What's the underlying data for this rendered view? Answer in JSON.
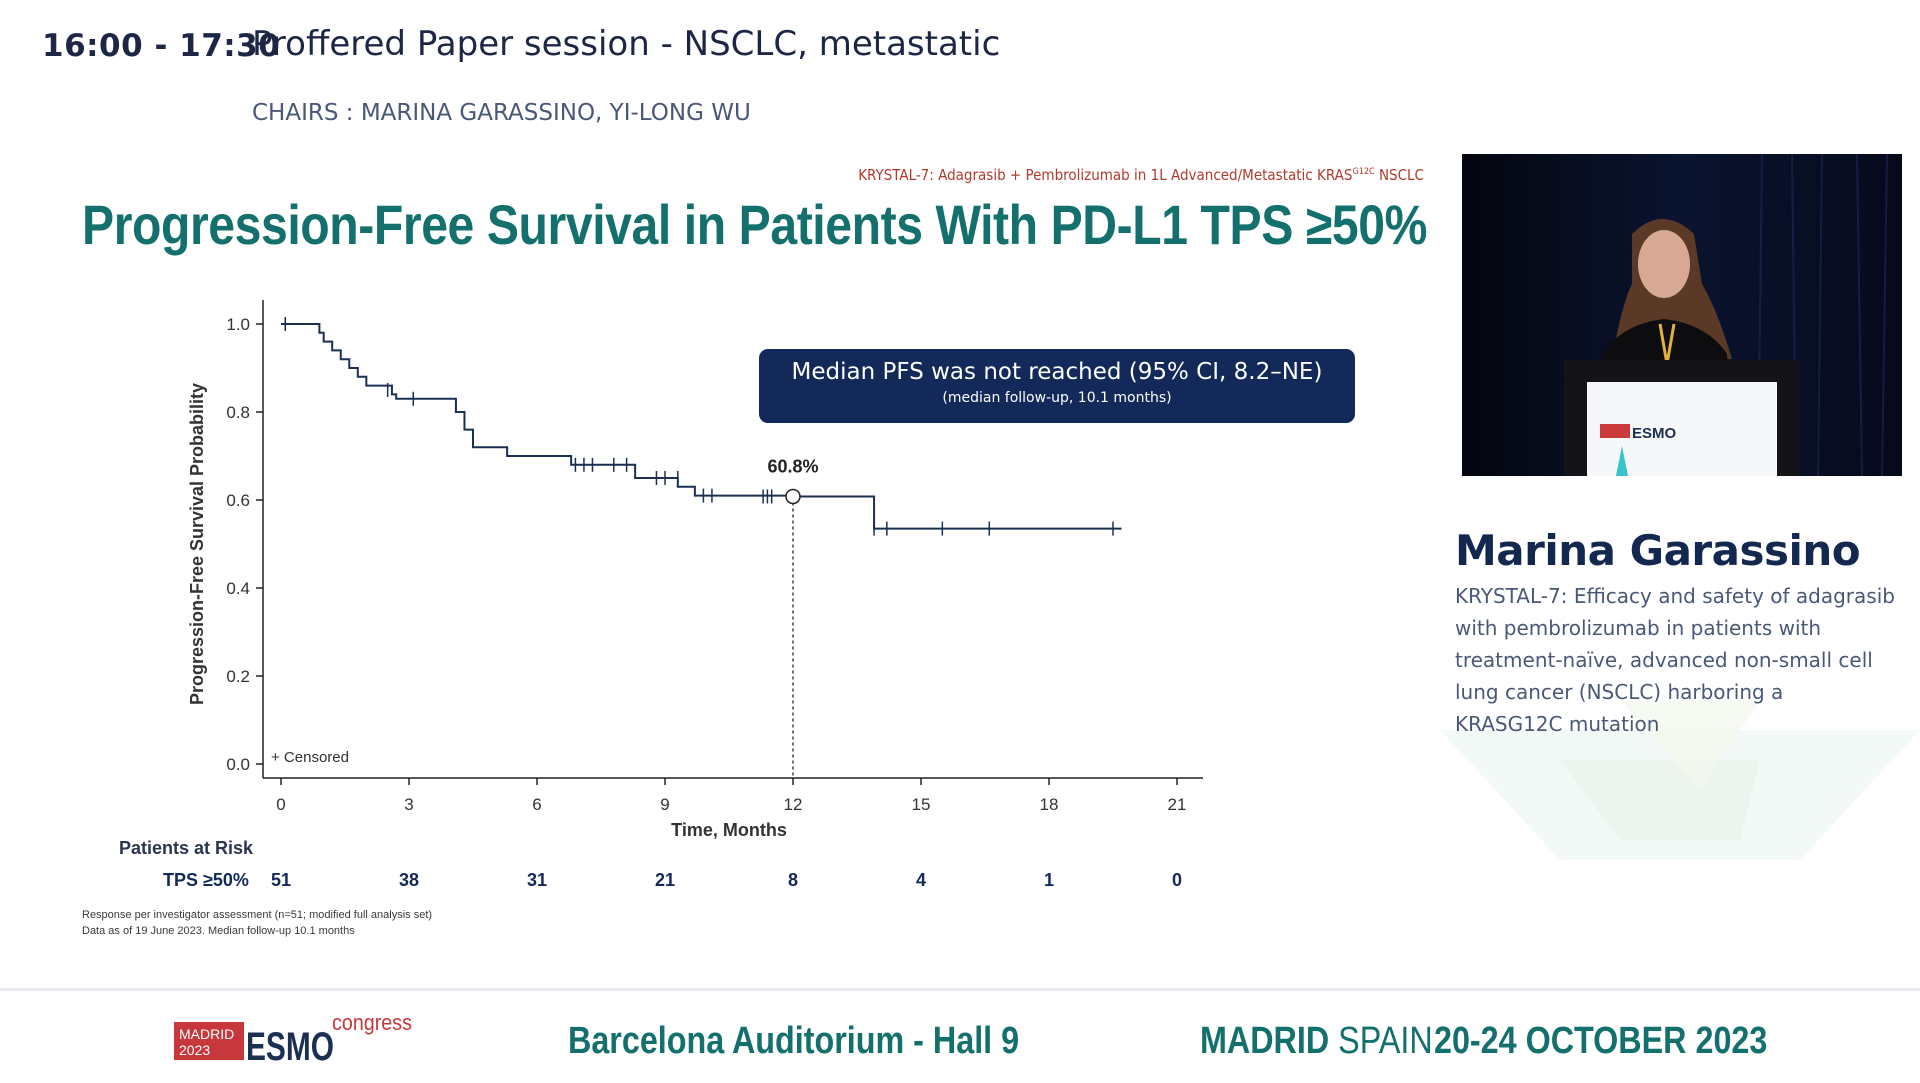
{
  "header": {
    "time": "16:00 - 17:30",
    "session_title": "Proffered Paper session - NSCLC, metastatic",
    "chairs": "CHAIRS : MARINA GARASSINO, YI-LONG WU"
  },
  "slide": {
    "kicker_pre": "KRYSTAL-7: Adagrasib + Pembrolizumab in 1L Advanced/Metastatic KRAS",
    "kicker_sup": "G12C",
    "kicker_post": " NSCLC",
    "title": "Progression-Free Survival in Patients With PD-L1 TPS ≥50%",
    "callout_main": "Median PFS was not reached (95% CI, 8.2–NE)",
    "callout_sub": "(median follow-up, 10.1 months)",
    "risk_table": {
      "title": "Patients at Risk",
      "row_label": "TPS ≥50%",
      "values": [
        "51",
        "38",
        "31",
        "21",
        "8",
        "4",
        "1",
        "0"
      ]
    },
    "footnotes": [
      "Response per investigator assessment (n=51; modified full analysis set)",
      "Data as of 19 June 2023. Median follow-up 10.1 months"
    ]
  },
  "chart_data": {
    "type": "line",
    "title": "",
    "xlabel": "Time, Months",
    "ylabel": "Progression-Free Survival Probability",
    "xlim": [
      0,
      21
    ],
    "ylim": [
      0,
      1.0
    ],
    "xticks": [
      "0",
      "3",
      "6",
      "9",
      "12",
      "15",
      "18",
      "21"
    ],
    "yticks": [
      "0.0",
      "0.2",
      "0.4",
      "0.6",
      "0.8",
      "1.0"
    ],
    "legend": "+ Censored",
    "color": "#1b2f52",
    "series": [
      {
        "steps": [
          [
            0,
            1.0
          ],
          [
            0.9,
            0.98
          ],
          [
            1.0,
            0.96
          ],
          [
            1.2,
            0.94
          ],
          [
            1.4,
            0.92
          ],
          [
            1.6,
            0.9
          ],
          [
            1.8,
            0.88
          ],
          [
            2.0,
            0.86
          ],
          [
            2.6,
            0.84
          ],
          [
            2.7,
            0.83
          ],
          [
            3.1,
            0.83
          ],
          [
            4.1,
            0.8
          ],
          [
            4.3,
            0.76
          ],
          [
            4.5,
            0.72
          ],
          [
            5.3,
            0.7
          ],
          [
            6.8,
            0.68
          ],
          [
            8.3,
            0.65
          ],
          [
            9.3,
            0.63
          ],
          [
            9.7,
            0.61
          ],
          [
            12.0,
            0.608
          ],
          [
            13.9,
            0.535
          ],
          [
            19.7,
            0.535
          ]
        ],
        "censored": [
          [
            0.1,
            1.0
          ],
          [
            2.5,
            0.85
          ],
          [
            3.1,
            0.83
          ],
          [
            6.9,
            0.68
          ],
          [
            7.1,
            0.68
          ],
          [
            7.3,
            0.68
          ],
          [
            7.8,
            0.68
          ],
          [
            8.1,
            0.68
          ],
          [
            8.8,
            0.65
          ],
          [
            9.0,
            0.65
          ],
          [
            9.3,
            0.65
          ],
          [
            9.9,
            0.61
          ],
          [
            10.1,
            0.61
          ],
          [
            11.3,
            0.608
          ],
          [
            11.4,
            0.608
          ],
          [
            11.5,
            0.608
          ],
          [
            13.9,
            0.535
          ],
          [
            14.2,
            0.535
          ],
          [
            15.5,
            0.535
          ],
          [
            16.6,
            0.535
          ],
          [
            19.5,
            0.535
          ]
        ]
      }
    ],
    "annotation": {
      "x": 12,
      "y": 0.608,
      "label": "60.8%"
    }
  },
  "speaker": {
    "name": "Marina Garassino",
    "talk_title": "KRYSTAL-7: Efficacy and safety of adagrasib with pembrolizumab in patients with treatment-naïve, advanced non-small cell lung cancer (NSCLC) harboring a KRASG12C mutation",
    "podium_logo": "ESMO"
  },
  "footer": {
    "logo_city": "MADRID",
    "logo_year": "2023",
    "logo_brand": "ESMO",
    "logo_word": "congress",
    "venue": "Barcelona Auditorium - Hall 9",
    "city": "MADRID",
    "country": "SPAIN",
    "dates": "20-24 OCTOBER 2023"
  }
}
